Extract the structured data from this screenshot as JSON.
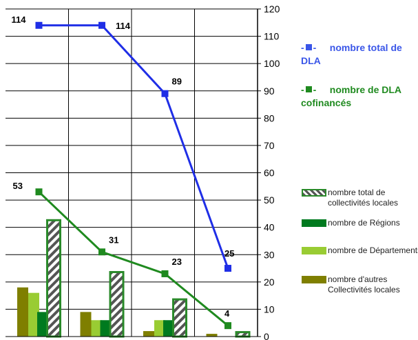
{
  "chart_data": {
    "type": "bar",
    "categories": [
      "",
      "",
      "",
      ""
    ],
    "ylim": [
      0,
      120
    ],
    "y_ticks": [
      0,
      10,
      20,
      30,
      40,
      50,
      60,
      70,
      80,
      90,
      100,
      110,
      120
    ],
    "grid": true,
    "legend_position": "right",
    "line_series": [
      {
        "name": "nombre total de DLA",
        "color": "#1f2ee6",
        "values": [
          114,
          114,
          89,
          25
        ],
        "labels": [
          "114",
          "114",
          "89",
          "25"
        ]
      },
      {
        "name": "nombre de DLA cofinancés",
        "color": "#1f8a1f",
        "values": [
          53,
          31,
          23,
          4
        ],
        "labels": [
          "53",
          "31",
          "23",
          "4"
        ]
      }
    ],
    "bar_series": [
      {
        "name": "nombre d'autres Collectivités locales",
        "color": "#7f7f00",
        "values": [
          18,
          9,
          2,
          1
        ]
      },
      {
        "name": "nombre de Départements",
        "color": "#99cc33",
        "values": [
          16,
          6,
          6,
          0
        ]
      },
      {
        "name": "nombre de Régions",
        "color": "#007a1f",
        "values": [
          9,
          6,
          6,
          0
        ]
      },
      {
        "name": "nombre total de collectivités locales",
        "color": "#2a8a2a",
        "values": [
          43,
          24,
          14,
          2
        ]
      }
    ]
  }
}
